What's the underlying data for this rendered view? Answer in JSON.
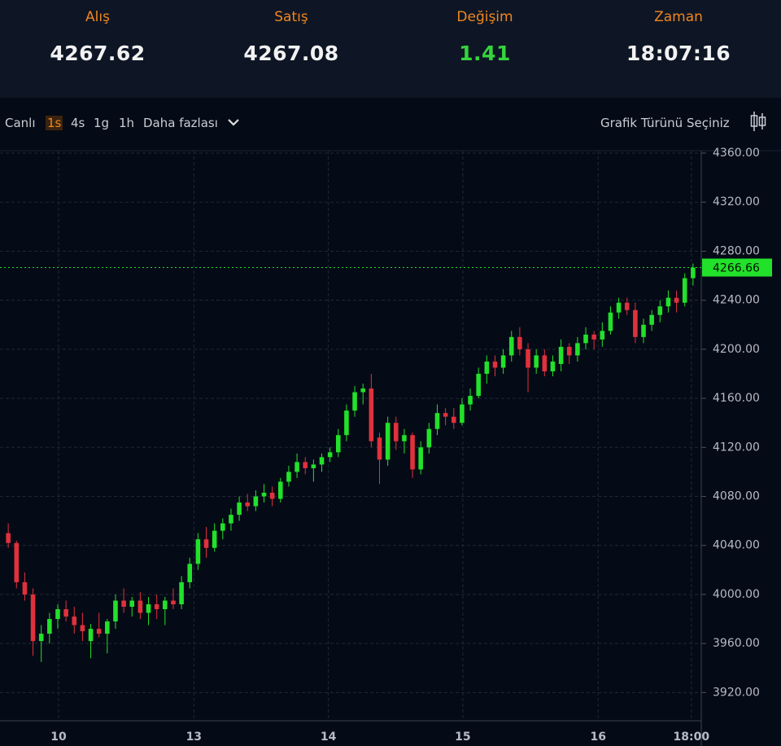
{
  "header": {
    "items": [
      {
        "label": "Alış",
        "value": 4267.62
      },
      {
        "label": "Satış",
        "value": 4267.08
      },
      {
        "label": "Değişim",
        "value": 1.41
      },
      {
        "label": "Zaman",
        "value": "18:07:16"
      }
    ]
  },
  "toolbar": {
    "periods": [
      "Canlı",
      "1s",
      "4s",
      "1g",
      "1h"
    ],
    "active": "1s",
    "more": "Daha fazlası",
    "chart_type": "Grafik Türünü Seçiniz"
  },
  "chart_data": {
    "type": "candlestick",
    "up_color": "#22e12a",
    "down_color": "#e0313d",
    "grid": true,
    "open": [
      4050,
      4042,
      4010,
      4000,
      3962,
      3968,
      3980,
      3988,
      3982,
      3975,
      3962,
      3972,
      3968,
      3978,
      3995,
      3990,
      3995,
      3985,
      3992,
      3988,
      3995,
      3992,
      4010,
      4025,
      4045,
      4038,
      4052,
      4058,
      4065,
      4075,
      4072,
      4080,
      4083,
      4078,
      4092,
      4100,
      4108,
      4103,
      4106,
      4112,
      4116,
      4130,
      4150,
      4165,
      4168,
      4128,
      4110,
      4140,
      4125,
      4130,
      4102,
      4120,
      4135,
      4148,
      4145,
      4140,
      4155,
      4162,
      4180,
      4190,
      4185,
      4195,
      4210,
      4200,
      4185,
      4195,
      4182,
      4188,
      4202,
      4195,
      4205,
      4212,
      4208,
      4215,
      4230,
      4238,
      4232,
      4210,
      4220,
      4228,
      4235,
      4242,
      4238,
      4258
    ],
    "high": [
      4058,
      4044,
      4018,
      4005,
      3975,
      3985,
      3992,
      3995,
      3990,
      3985,
      3976,
      3985,
      3980,
      4000,
      4005,
      3998,
      4002,
      3998,
      4000,
      3998,
      4005,
      4015,
      4030,
      4050,
      4055,
      4058,
      4062,
      4070,
      4080,
      4082,
      4085,
      4090,
      4088,
      4095,
      4105,
      4115,
      4112,
      4110,
      4115,
      4120,
      4135,
      4155,
      4170,
      4172,
      4180,
      4132,
      4145,
      4145,
      4135,
      4132,
      4125,
      4140,
      4155,
      4152,
      4152,
      4160,
      4168,
      4185,
      4195,
      4195,
      4200,
      4215,
      4218,
      4205,
      4200,
      4200,
      4195,
      4208,
      4205,
      4210,
      4218,
      4215,
      4222,
      4235,
      4242,
      4242,
      4238,
      4225,
      4232,
      4240,
      4248,
      4248,
      4262,
      4270
    ],
    "low": [
      4038,
      4005,
      3995,
      3950,
      3945,
      3960,
      3972,
      3978,
      3968,
      3962,
      3948,
      3965,
      3952,
      3972,
      3985,
      3982,
      3980,
      3975,
      3980,
      3975,
      3988,
      3988,
      4005,
      4020,
      4030,
      4035,
      4045,
      4052,
      4060,
      4068,
      4068,
      4075,
      4072,
      4075,
      4088,
      4095,
      4098,
      4092,
      4100,
      4108,
      4112,
      4125,
      4145,
      4155,
      4120,
      4090,
      4105,
      4118,
      4115,
      4095,
      4098,
      4115,
      4130,
      4138,
      4135,
      4138,
      4150,
      4160,
      4172,
      4178,
      4180,
      4190,
      4195,
      4165,
      4180,
      4178,
      4178,
      4182,
      4188,
      4190,
      4200,
      4200,
      4202,
      4212,
      4225,
      4228,
      4205,
      4205,
      4215,
      4222,
      4230,
      4230,
      4235,
      4252
    ],
    "close": [
      4042,
      4010,
      4000,
      3962,
      3968,
      3980,
      3988,
      3982,
      3975,
      3970,
      3972,
      3968,
      3978,
      3995,
      3990,
      3995,
      3985,
      3992,
      3988,
      3995,
      3992,
      4010,
      4025,
      4045,
      4038,
      4052,
      4058,
      4065,
      4075,
      4072,
      4080,
      4083,
      4078,
      4092,
      4100,
      4108,
      4103,
      4106,
      4112,
      4116,
      4130,
      4150,
      4165,
      4168,
      4125,
      4110,
      4140,
      4125,
      4130,
      4102,
      4120,
      4135,
      4148,
      4145,
      4140,
      4155,
      4162,
      4180,
      4190,
      4185,
      4195,
      4210,
      4200,
      4185,
      4195,
      4182,
      4190,
      4202,
      4195,
      4205,
      4212,
      4208,
      4215,
      4230,
      4238,
      4232,
      4210,
      4220,
      4228,
      4235,
      4242,
      4238,
      4258,
      4266.66
    ],
    "last_price": 4266.66,
    "ylim": [
      3897,
      4362
    ],
    "yticks": [
      {
        "value": 3920,
        "label": "3920.00"
      },
      {
        "value": 3960,
        "label": "3960.00"
      },
      {
        "value": 4000,
        "label": "4000.00"
      },
      {
        "value": 4040,
        "label": "4040.00"
      },
      {
        "value": 4080,
        "label": "4080.00"
      },
      {
        "value": 4120,
        "label": "4120.00"
      },
      {
        "value": 4160,
        "label": "4160.00"
      },
      {
        "value": 4200,
        "label": "4200.00"
      },
      {
        "value": 4240,
        "label": "4240.00"
      },
      {
        "value": 4280,
        "label": "4280.00"
      },
      {
        "value": 4320,
        "label": "4320.00"
      },
      {
        "value": 4360,
        "label": "4360.00"
      }
    ],
    "xlim": [
      -1,
      84
    ],
    "xticks": [
      {
        "value": 6.1,
        "label": "10"
      },
      {
        "value": 22.5,
        "label": "13"
      },
      {
        "value": 38.8,
        "label": "14"
      },
      {
        "value": 55.1,
        "label": "15"
      },
      {
        "value": 71.5,
        "label": "16"
      },
      {
        "value": 82.8,
        "label": "18:00"
      }
    ]
  }
}
